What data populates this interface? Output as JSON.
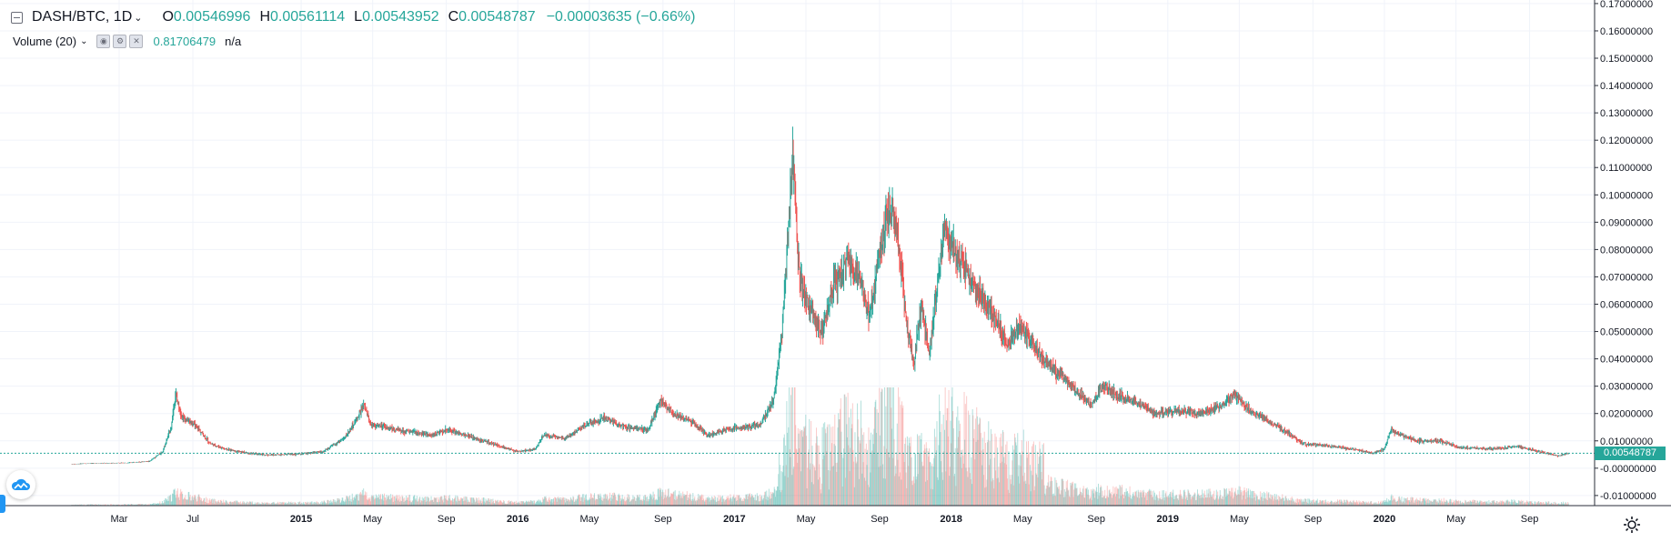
{
  "legend": {
    "symbol": "DASH/BTC, 1D",
    "open_label": "O",
    "open": "0.00546996",
    "high_label": "H",
    "high": "0.00561114",
    "low_label": "L",
    "low": "0.00543952",
    "close_label": "C",
    "close": "0.00548787",
    "change": "−0.00003635 (−0.66%)"
  },
  "study": {
    "name": "Volume (20)",
    "value": "0.81706479",
    "na": "n/a"
  },
  "last_price_tag": "0.00548787",
  "colors": {
    "up": "#26a69a",
    "down": "#ef5350",
    "grid": "#f0f3fa",
    "accent": "#2196f3"
  },
  "icons": [
    "collapse-icon",
    "chevron-down-icon",
    "eye-icon",
    "gear-icon",
    "close-icon",
    "cloud-logo-icon",
    "settings-gear-icon"
  ],
  "chart_data": {
    "type": "candlestick",
    "title": "DASH/BTC, 1D",
    "y_axis_labels": [
      "0.17000000",
      "0.16000000",
      "0.15000000",
      "0.14000000",
      "0.13000000",
      "0.12000000",
      "0.11000000",
      "0.10000000",
      "0.09000000",
      "0.08000000",
      "0.07000000",
      "0.06000000",
      "0.05000000",
      "0.04000000",
      "0.03000000",
      "0.02000000",
      "0.01000000",
      "-0.00000000",
      "-0.01000000"
    ],
    "y_ticks": [
      0.17,
      0.16,
      0.15,
      0.14,
      0.13,
      0.12,
      0.11,
      0.1,
      0.09,
      0.08,
      0.07,
      0.06,
      0.05,
      0.04,
      0.03,
      0.02,
      0.01,
      0.0,
      -0.01
    ],
    "ylim": [
      -0.0137,
      0.1713
    ],
    "x_axis_labels": [
      {
        "label": "Mar",
        "t": 2014.16
      },
      {
        "label": "Jul",
        "t": 2014.5
      },
      {
        "label": "2015",
        "t": 2015.0,
        "bold": true
      },
      {
        "label": "May",
        "t": 2015.33
      },
      {
        "label": "Sep",
        "t": 2015.67
      },
      {
        "label": "2016",
        "t": 2016.0,
        "bold": true
      },
      {
        "label": "May",
        "t": 2016.33
      },
      {
        "label": "Sep",
        "t": 2016.67
      },
      {
        "label": "2017",
        "t": 2017.0,
        "bold": true
      },
      {
        "label": "May",
        "t": 2017.33
      },
      {
        "label": "Sep",
        "t": 2017.67
      },
      {
        "label": "2018",
        "t": 2018.0,
        "bold": true
      },
      {
        "label": "May",
        "t": 2018.33
      },
      {
        "label": "Sep",
        "t": 2018.67
      },
      {
        "label": "2019",
        "t": 2019.0,
        "bold": true
      },
      {
        "label": "May",
        "t": 2019.33
      },
      {
        "label": "Sep",
        "t": 2019.67
      },
      {
        "label": "2020",
        "t": 2020.0,
        "bold": true
      },
      {
        "label": "May",
        "t": 2020.33
      },
      {
        "label": "Sep",
        "t": 2020.67
      }
    ],
    "xlim": [
      2013.61,
      2020.97
    ],
    "series": [
      {
        "name": "DASH/BTC",
        "close_path": [
          [
            2013.94,
            0.0015
          ],
          [
            2014.05,
            0.0018
          ],
          [
            2014.18,
            0.0019
          ],
          [
            2014.3,
            0.0025
          ],
          [
            2014.36,
            0.006
          ],
          [
            2014.4,
            0.015
          ],
          [
            2014.42,
            0.027
          ],
          [
            2014.45,
            0.019
          ],
          [
            2014.52,
            0.015
          ],
          [
            2014.58,
            0.009
          ],
          [
            2014.65,
            0.007
          ],
          [
            2014.75,
            0.0055
          ],
          [
            2014.85,
            0.0048
          ],
          [
            2015.0,
            0.0052
          ],
          [
            2015.1,
            0.006
          ],
          [
            2015.2,
            0.011
          ],
          [
            2015.25,
            0.017
          ],
          [
            2015.29,
            0.023
          ],
          [
            2015.32,
            0.016
          ],
          [
            2015.45,
            0.014
          ],
          [
            2015.6,
            0.012
          ],
          [
            2015.68,
            0.014
          ],
          [
            2015.8,
            0.011
          ],
          [
            2015.92,
            0.008
          ],
          [
            2016.0,
            0.006
          ],
          [
            2016.08,
            0.007
          ],
          [
            2016.12,
            0.012
          ],
          [
            2016.22,
            0.011
          ],
          [
            2016.32,
            0.016
          ],
          [
            2016.4,
            0.018
          ],
          [
            2016.5,
            0.015
          ],
          [
            2016.6,
            0.014
          ],
          [
            2016.66,
            0.025
          ],
          [
            2016.72,
            0.02
          ],
          [
            2016.8,
            0.017
          ],
          [
            2016.88,
            0.012
          ],
          [
            2016.95,
            0.014
          ],
          [
            2017.05,
            0.015
          ],
          [
            2017.12,
            0.016
          ],
          [
            2017.18,
            0.025
          ],
          [
            2017.22,
            0.05
          ],
          [
            2017.25,
            0.09
          ],
          [
            2017.27,
            0.115
          ],
          [
            2017.3,
            0.07
          ],
          [
            2017.34,
            0.06
          ],
          [
            2017.4,
            0.05
          ],
          [
            2017.45,
            0.065
          ],
          [
            2017.52,
            0.075
          ],
          [
            2017.58,
            0.07
          ],
          [
            2017.62,
            0.055
          ],
          [
            2017.66,
            0.075
          ],
          [
            2017.7,
            0.09
          ],
          [
            2017.73,
            0.095
          ],
          [
            2017.76,
            0.08
          ],
          [
            2017.8,
            0.05
          ],
          [
            2017.83,
            0.038
          ],
          [
            2017.86,
            0.06
          ],
          [
            2017.9,
            0.042
          ],
          [
            2017.94,
            0.07
          ],
          [
            2017.97,
            0.09
          ],
          [
            2018.0,
            0.08
          ],
          [
            2018.05,
            0.075
          ],
          [
            2018.12,
            0.065
          ],
          [
            2018.2,
            0.055
          ],
          [
            2018.26,
            0.045
          ],
          [
            2018.32,
            0.052
          ],
          [
            2018.38,
            0.045
          ],
          [
            2018.45,
            0.038
          ],
          [
            2018.52,
            0.033
          ],
          [
            2018.58,
            0.028
          ],
          [
            2018.65,
            0.023
          ],
          [
            2018.7,
            0.03
          ],
          [
            2018.76,
            0.027
          ],
          [
            2018.85,
            0.024
          ],
          [
            2018.95,
            0.02
          ],
          [
            2019.05,
            0.021
          ],
          [
            2019.15,
            0.02
          ],
          [
            2019.25,
            0.023
          ],
          [
            2019.3,
            0.027
          ],
          [
            2019.38,
            0.021
          ],
          [
            2019.45,
            0.018
          ],
          [
            2019.55,
            0.013
          ],
          [
            2019.62,
            0.009
          ],
          [
            2019.75,
            0.008
          ],
          [
            2019.85,
            0.007
          ],
          [
            2019.95,
            0.0055
          ],
          [
            2020.0,
            0.007
          ],
          [
            2020.03,
            0.014
          ],
          [
            2020.08,
            0.012
          ],
          [
            2020.15,
            0.01
          ],
          [
            2020.25,
            0.01
          ],
          [
            2020.35,
            0.0075
          ],
          [
            2020.5,
            0.007
          ],
          [
            2020.62,
            0.008
          ],
          [
            2020.72,
            0.006
          ],
          [
            2020.8,
            0.0045
          ],
          [
            2020.85,
            0.0055
          ]
        ]
      }
    ],
    "volume_note": "Volume (20) histogram along the bottom",
    "last_price": 0.00548787
  }
}
